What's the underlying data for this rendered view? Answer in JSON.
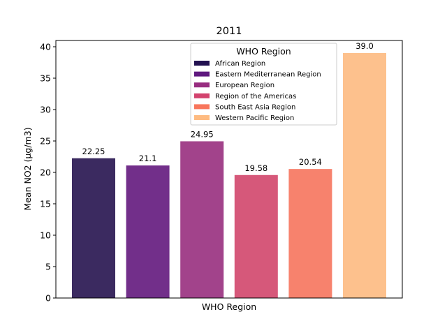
{
  "chart_data": {
    "type": "bar",
    "title": "2011",
    "xlabel": "WHO Region",
    "ylabel": "Mean NO2 (µg/m3)",
    "ylim": [
      0,
      41
    ],
    "yticks": [
      0,
      5,
      10,
      15,
      20,
      25,
      30,
      35,
      40
    ],
    "grid": false,
    "legend": {
      "title": "WHO Region",
      "placement": "top-right"
    },
    "series": [
      {
        "name": "African Region",
        "value": 22.25,
        "label": "22.25",
        "color": "#3b2a60",
        "legend_color": "#221150"
      },
      {
        "name": "Eastern Mediterranean Region",
        "value": 21.1,
        "label": "21.1",
        "color": "#722f8a",
        "legend_color": "#5f187f"
      },
      {
        "name": "European Region",
        "value": 24.95,
        "label": "24.95",
        "color": "#a2438b",
        "legend_color": "#982d80"
      },
      {
        "name": "Region of the Americas",
        "value": 19.58,
        "label": "19.58",
        "color": "#d6587a",
        "legend_color": "#d3436e"
      },
      {
        "name": "South East Asia Region",
        "value": 20.54,
        "label": "20.54",
        "color": "#f7826d",
        "legend_color": "#f8765c"
      },
      {
        "name": "Western Pacific Region",
        "value": 39.0,
        "label": "39.0",
        "color": "#fdc18d",
        "legend_color": "#febb81"
      }
    ]
  }
}
